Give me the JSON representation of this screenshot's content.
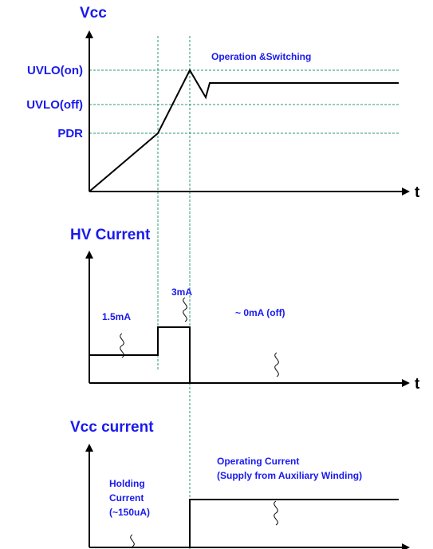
{
  "vcc": {
    "title": "Vcc",
    "levels": [
      "UVLO(on)",
      "UVLO(off)",
      "PDR"
    ],
    "note": "Operation &Switching",
    "axis": "t"
  },
  "hv_current": {
    "title": "HV Current",
    "labels": [
      "1.5mA",
      "3mA",
      "~ 0mA (off)"
    ],
    "axis": "t"
  },
  "vcc_current": {
    "title": "Vcc current",
    "holding": [
      "Holding",
      "Current",
      "(~150uA)"
    ],
    "operating": [
      "Operating Current",
      "(Supply from Auxiliary Winding)"
    ]
  }
}
